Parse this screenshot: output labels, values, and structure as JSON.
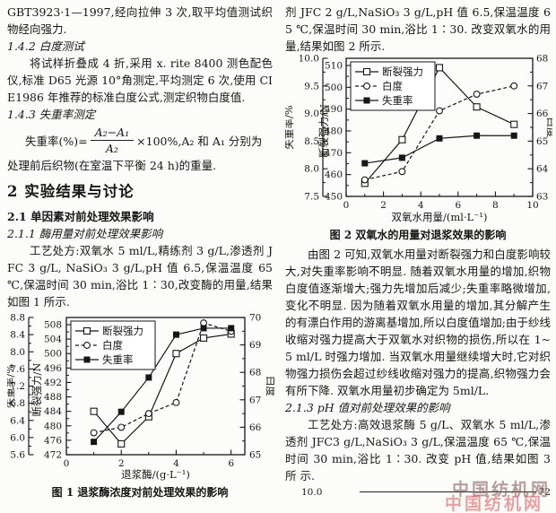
{
  "left_column": {
    "para1": "GBT3923·1—1997,经向拉伸 3 次,取平均值测试织物经向强力.",
    "h142": "1.4.2  白度测试",
    "para2": "将试样折叠成 4 折,采用 x. rite 8400 测色配色仪,标准 D65 光源 10°角测定,平均测定 6 次,使用 CIE1986 年推荐的标准白度公式,测定织物白度值.",
    "h143": "1.4.3  失重率测定",
    "formula": {
      "lead": "失重率(%)=",
      "numerator": "A₂−A₁",
      "denominator": "A₂",
      "tail": "×100%,A₂ 和 A₁ 分别为"
    },
    "para3": "处理前后织物(在室温下平衡 24 h)的重量.",
    "h2": "2  实验结果与讨论",
    "h21": "2.1  单因素对前处理效果影响",
    "h211": "2.1.1  酶用量对前处理效果影响",
    "para4": "工艺处方:双氧水 5 ml/L,精练剂 3 g/L,渗透剂 JFC 3 g/L, NaSiO₃ 3 g/L,pH 值 6.5,保温温度 65 ℃,保温时间 30 min,浴比 1∶30,改变酶的用量,结果如图 1 所示."
  },
  "right_column": {
    "para1": "剂 JFC 2 g/L,NaSiO₃ 3 g/L,pH 值 6.5,保温温度 65 ℃,保温时间 30 min,浴比 1∶30. 改变双氧水的用量,结果如图 2 所示.",
    "para2": "由图 2 可知,双氧水用量对断裂强力和白度影响较大,对失重率影响不明显. 随着双氧水用量的增加,织物白度值逐渐增大;强力先增加后减少;失重率略微增加,变化不明显. 因为随着双氧水用量的增加,其分解产生的有漂白作用的游离基增加,所以白度值增加;由于纱线收缩对强力提高大于双氧水对织物的损伤,所以在 1~5 ml/L 时强力增加. 当双氧水用量继续增大时,它对织物强力损伤会超过纱线收缩对强力的提高,织物强力会有所下降. 双氧水用量初步确定为 5ml/L.",
    "h213": "2.1.3  pH 值对前处理效果的影响",
    "para3": "工艺处方:高效退浆酶 5 g/L、双氧水 5 ml/L,渗透剂 JFC3 g/L,NaSiO₃ 3 g/L,保温温度 65 ℃,保温时间 30 min,浴比 1∶30. 改变 pH 值,结果如图 3 所 示.",
    "fig3_top": {
      "left_tick": "10.0",
      "right_tick": "72"
    },
    "watermark": {
      "line1": "中国纺机网",
      "line2": "中国纺机网",
      "color_top": "#8a6161",
      "color_bottom": "#d95f5f"
    }
  },
  "chart_data": [
    {
      "type": "line",
      "title": "图 1  退浆酶浓度对前处理效果的影响",
      "xlabel": "退浆酶/(g·L⁻¹)",
      "x": [
        1,
        2,
        3,
        4,
        5,
        6
      ],
      "x_axis": {
        "lim": [
          0,
          6.5
        ],
        "tick_step": 2,
        "minor_step": 1,
        "decimals": 0
      },
      "y_axes": [
        {
          "id": "weightloss",
          "label": "失重率/%",
          "side": "left-outer",
          "lim": [
            5.6,
            8.8
          ],
          "tick_step": 0.4,
          "minor_step": 0.2,
          "decimals": 1
        },
        {
          "id": "strength",
          "label": "断裂强力/N",
          "side": "left-inner",
          "lim": [
            472,
            508
          ],
          "tick_step": 4,
          "minor_step": 2,
          "decimals": 0
        },
        {
          "id": "whiteness",
          "label": "白度",
          "side": "right",
          "lim": [
            65,
            70
          ],
          "tick_step": 1,
          "minor_step": 0.5,
          "decimals": 0
        }
      ],
      "series": [
        {
          "name": "断裂强力",
          "axis": "strength",
          "marker": "open-square",
          "line": "solid",
          "values": [
            484,
            475,
            482.5,
            500,
            504.3,
            505.4
          ]
        },
        {
          "name": "白度",
          "axis": "whiteness",
          "marker": "open-circle",
          "line": "dashed",
          "values": [
            65.8,
            66.0,
            66.5,
            66.9,
            69.8,
            69.5
          ]
        },
        {
          "name": "失重率",
          "axis": "weightloss",
          "marker": "filled-square",
          "line": "solid",
          "values": [
            5.9,
            6.6,
            7.4,
            8.4,
            8.55,
            8.55
          ]
        }
      ],
      "legend_position": "top-left"
    },
    {
      "type": "line",
      "title": "图 2  双氧水的用量对退浆效果的影响",
      "xlabel": "双氧水用量/(ml·L⁻¹)",
      "x": [
        1,
        3,
        5,
        7,
        9
      ],
      "x_axis": {
        "lim": [
          0,
          10
        ],
        "tick_step": 2,
        "minor_step": 1,
        "decimals": 0
      },
      "y_axes": [
        {
          "id": "weightloss",
          "label": "失重率/%",
          "side": "left-outer",
          "lim": [
            7.5,
            10.0
          ],
          "tick_step": 0.5,
          "minor_step": 0.25,
          "decimals": 1
        },
        {
          "id": "strength",
          "label": "断裂强力/N",
          "side": "left-inner",
          "lim": [
            450,
            510
          ],
          "tick_step": 10,
          "minor_step": 5,
          "decimals": 0
        },
        {
          "id": "whiteness",
          "label": "白度",
          "side": "right",
          "lim": [
            63,
            68
          ],
          "tick_step": 1,
          "minor_step": 0.5,
          "decimals": 0
        }
      ],
      "series": [
        {
          "name": "断裂强力",
          "axis": "strength",
          "marker": "open-square",
          "line": "solid",
          "values": [
            456,
            476,
            509,
            491,
            483
          ]
        },
        {
          "name": "白度",
          "axis": "whiteness",
          "marker": "open-circle",
          "line": "dashed",
          "values": [
            63.6,
            63.9,
            66.1,
            66.7,
            67.0
          ]
        },
        {
          "name": "失重率",
          "axis": "weightloss",
          "marker": "filled-square",
          "line": "solid",
          "values": [
            8.1,
            8.2,
            8.55,
            8.6,
            8.6
          ]
        }
      ],
      "legend_position": "top-left"
    }
  ]
}
